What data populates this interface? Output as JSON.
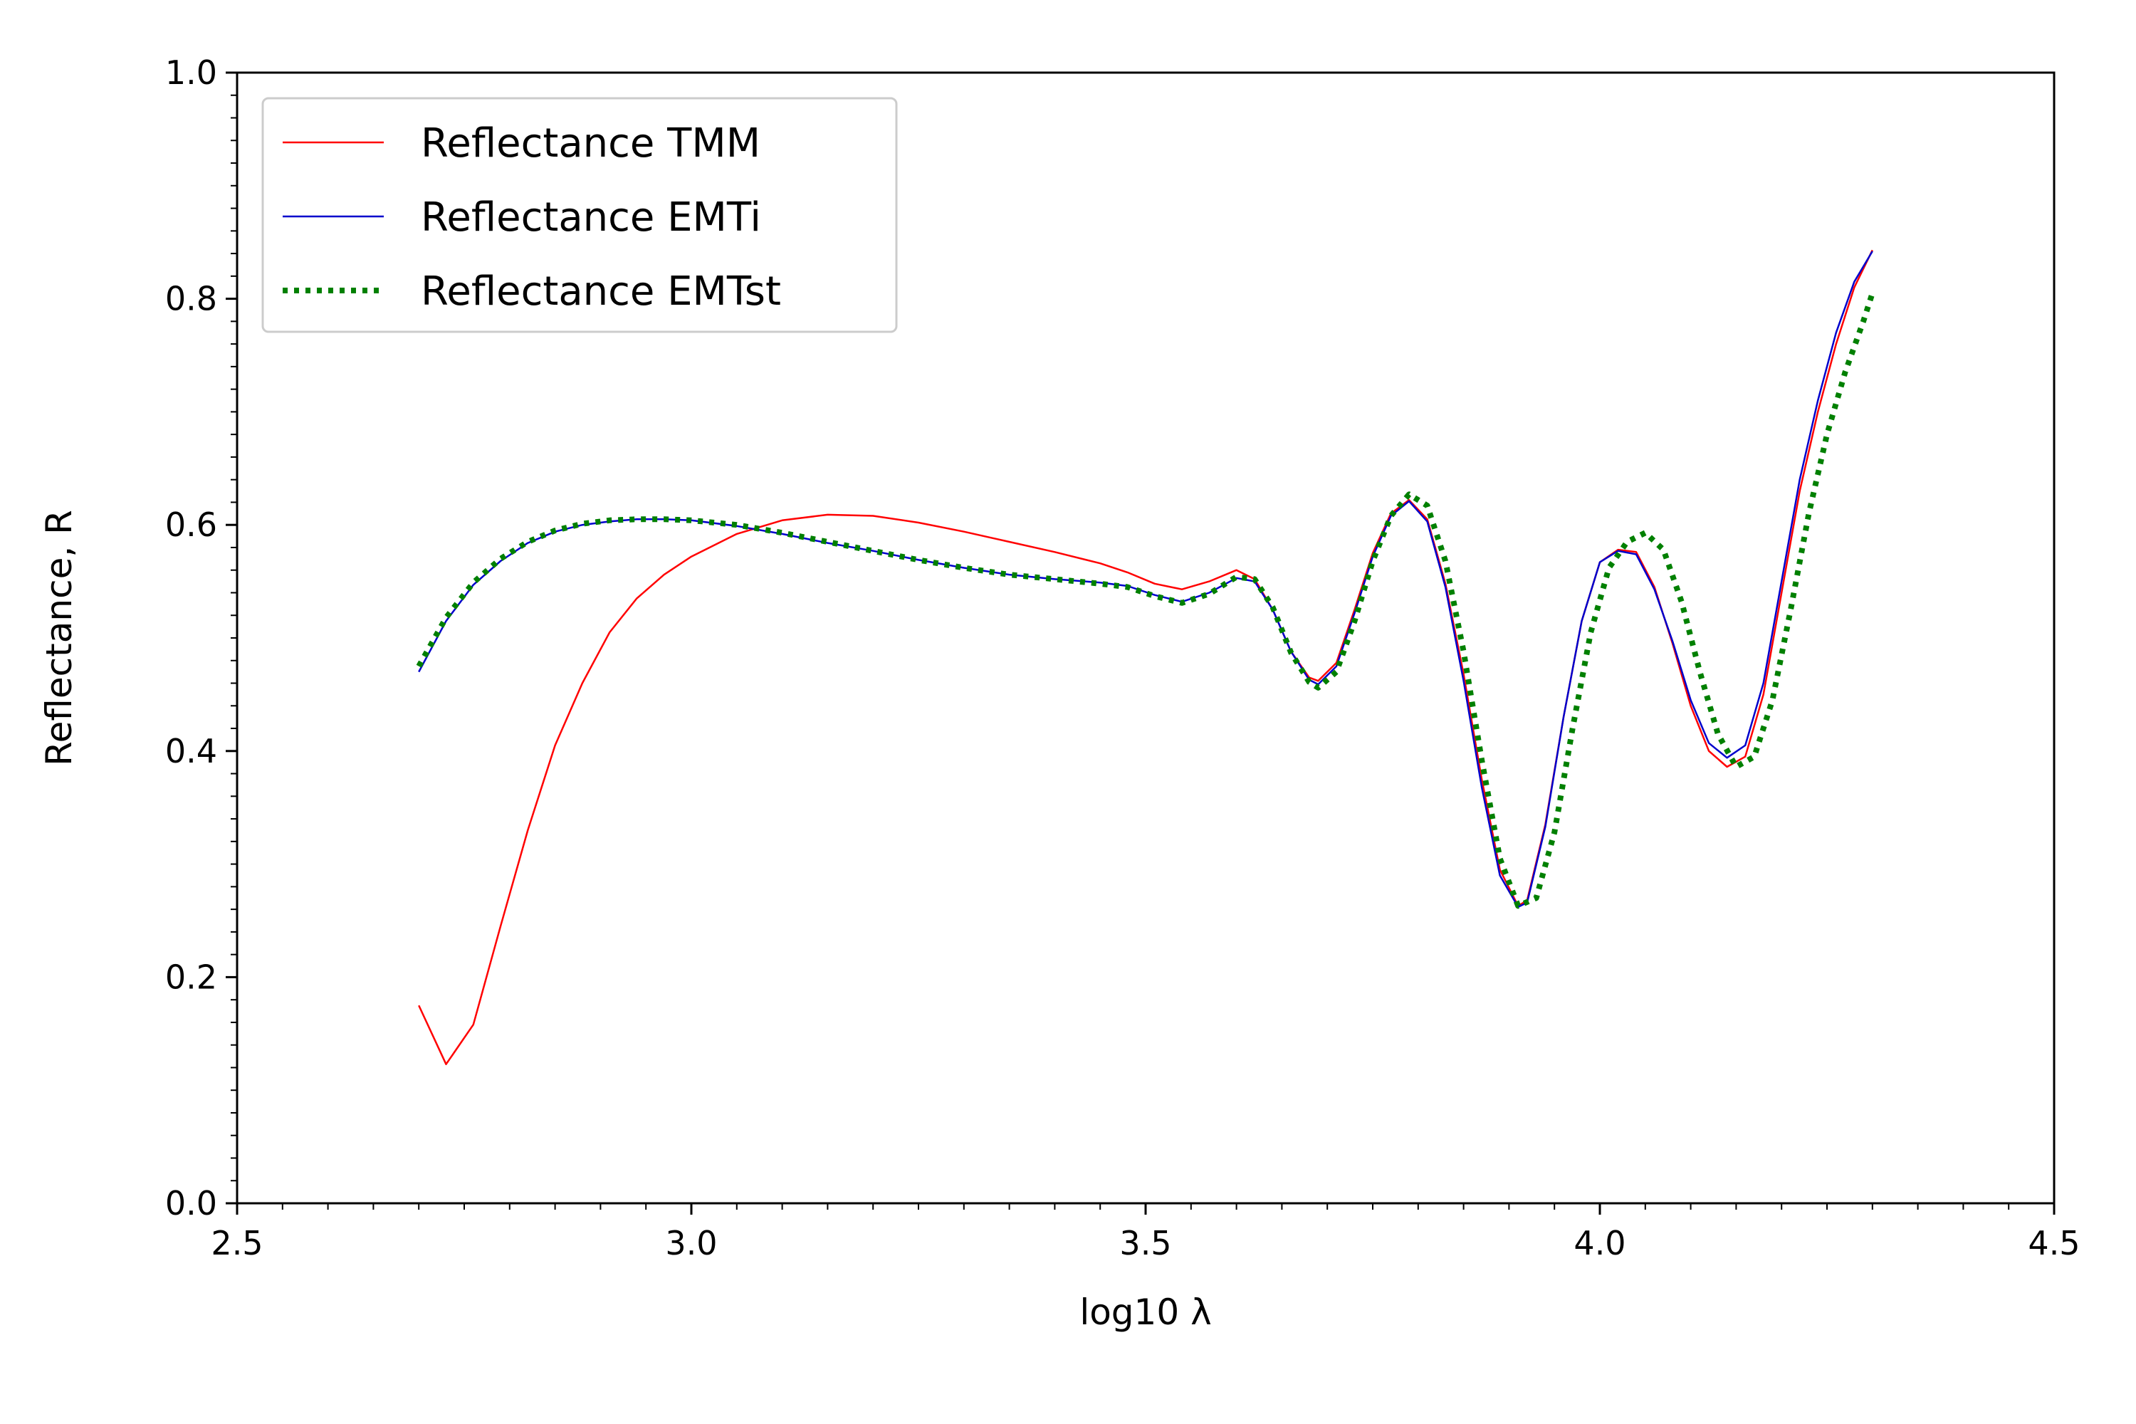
{
  "chart_data": {
    "type": "line",
    "title": "",
    "xlabel": "log10 λ",
    "ylabel": "Reflectance, R",
    "xlim": [
      2.5,
      4.5
    ],
    "ylim": [
      0.0,
      1.0
    ],
    "xticks": [
      2.5,
      3.0,
      3.5,
      4.0,
      4.5
    ],
    "xtick_labels": [
      "2.5",
      "3.0",
      "3.5",
      "4.0",
      "4.5"
    ],
    "yticks": [
      0.0,
      0.2,
      0.4,
      0.6,
      0.8,
      1.0
    ],
    "ytick_labels": [
      "0.0",
      "0.2",
      "0.4",
      "0.6",
      "0.8",
      "1.0"
    ],
    "grid": false,
    "legend_position": "top-left",
    "series": [
      {
        "name": "Reflectance TMM",
        "color": "#ff0000",
        "style": "solid",
        "x": [
          2.7,
          2.73,
          2.76,
          2.79,
          2.82,
          2.85,
          2.88,
          2.91,
          2.94,
          2.97,
          3.0,
          3.05,
          3.1,
          3.15,
          3.2,
          3.25,
          3.3,
          3.35,
          3.4,
          3.45,
          3.48,
          3.51,
          3.54,
          3.57,
          3.6,
          3.62,
          3.64,
          3.66,
          3.68,
          3.69,
          3.71,
          3.73,
          3.75,
          3.77,
          3.79,
          3.81,
          3.83,
          3.85,
          3.87,
          3.89,
          3.91,
          3.92,
          3.94,
          3.96,
          3.98,
          4.0,
          4.02,
          4.04,
          4.06,
          4.08,
          4.1,
          4.12,
          4.14,
          4.16,
          4.18,
          4.2,
          4.22,
          4.24,
          4.26,
          4.28,
          4.3
        ],
        "values": [
          0.175,
          0.123,
          0.158,
          0.245,
          0.33,
          0.405,
          0.46,
          0.505,
          0.535,
          0.556,
          0.572,
          0.592,
          0.604,
          0.609,
          0.608,
          0.602,
          0.594,
          0.585,
          0.576,
          0.566,
          0.558,
          0.548,
          0.543,
          0.55,
          0.56,
          0.552,
          0.525,
          0.488,
          0.465,
          0.462,
          0.478,
          0.525,
          0.575,
          0.61,
          0.622,
          0.605,
          0.548,
          0.468,
          0.375,
          0.295,
          0.263,
          0.268,
          0.335,
          0.43,
          0.515,
          0.567,
          0.578,
          0.576,
          0.545,
          0.495,
          0.44,
          0.4,
          0.386,
          0.395,
          0.45,
          0.54,
          0.63,
          0.7,
          0.76,
          0.81,
          0.843
        ]
      },
      {
        "name": "Reflectance EMTi",
        "color": "#0000cc",
        "style": "solid",
        "x": [
          2.7,
          2.73,
          2.76,
          2.79,
          2.82,
          2.85,
          2.88,
          2.91,
          2.94,
          2.97,
          3.0,
          3.05,
          3.1,
          3.15,
          3.2,
          3.25,
          3.3,
          3.35,
          3.4,
          3.45,
          3.48,
          3.51,
          3.54,
          3.57,
          3.6,
          3.62,
          3.64,
          3.66,
          3.68,
          3.69,
          3.71,
          3.73,
          3.75,
          3.77,
          3.79,
          3.81,
          3.83,
          3.85,
          3.87,
          3.89,
          3.91,
          3.92,
          3.94,
          3.96,
          3.98,
          4.0,
          4.02,
          4.04,
          4.06,
          4.08,
          4.1,
          4.12,
          4.14,
          4.16,
          4.18,
          4.2,
          4.22,
          4.24,
          4.26,
          4.28,
          4.3
        ],
        "values": [
          0.47,
          0.515,
          0.547,
          0.568,
          0.584,
          0.594,
          0.6,
          0.603,
          0.605,
          0.605,
          0.604,
          0.599,
          0.592,
          0.584,
          0.577,
          0.569,
          0.562,
          0.556,
          0.552,
          0.549,
          0.546,
          0.538,
          0.532,
          0.54,
          0.553,
          0.55,
          0.525,
          0.488,
          0.463,
          0.459,
          0.475,
          0.522,
          0.572,
          0.608,
          0.621,
          0.603,
          0.545,
          0.462,
          0.368,
          0.29,
          0.262,
          0.266,
          0.333,
          0.43,
          0.515,
          0.567,
          0.577,
          0.574,
          0.543,
          0.497,
          0.445,
          0.407,
          0.394,
          0.405,
          0.46,
          0.55,
          0.64,
          0.71,
          0.77,
          0.815,
          0.842
        ]
      },
      {
        "name": "Reflectance EMTst",
        "color": "#008000",
        "style": "dotted",
        "x": [
          2.7,
          2.73,
          2.76,
          2.79,
          2.82,
          2.85,
          2.88,
          2.91,
          2.94,
          2.97,
          3.0,
          3.05,
          3.1,
          3.15,
          3.2,
          3.25,
          3.3,
          3.35,
          3.4,
          3.45,
          3.48,
          3.51,
          3.54,
          3.57,
          3.6,
          3.62,
          3.64,
          3.66,
          3.68,
          3.69,
          3.71,
          3.73,
          3.75,
          3.77,
          3.79,
          3.81,
          3.83,
          3.85,
          3.87,
          3.89,
          3.91,
          3.93,
          3.95,
          3.97,
          3.99,
          4.01,
          4.03,
          4.05,
          4.07,
          4.09,
          4.11,
          4.13,
          4.15,
          4.17,
          4.19,
          4.21,
          4.23,
          4.25,
          4.27,
          4.29,
          4.3
        ],
        "values": [
          0.475,
          0.518,
          0.549,
          0.57,
          0.585,
          0.595,
          0.601,
          0.604,
          0.605,
          0.605,
          0.604,
          0.6,
          0.593,
          0.585,
          0.577,
          0.569,
          0.562,
          0.556,
          0.552,
          0.548,
          0.545,
          0.537,
          0.531,
          0.539,
          0.554,
          0.552,
          0.527,
          0.487,
          0.461,
          0.456,
          0.47,
          0.515,
          0.568,
          0.608,
          0.627,
          0.617,
          0.568,
          0.488,
          0.392,
          0.305,
          0.263,
          0.27,
          0.328,
          0.42,
          0.505,
          0.562,
          0.585,
          0.593,
          0.578,
          0.532,
          0.47,
          0.415,
          0.386,
          0.395,
          0.445,
          0.525,
          0.61,
          0.68,
          0.735,
          0.78,
          0.805
        ]
      }
    ]
  }
}
